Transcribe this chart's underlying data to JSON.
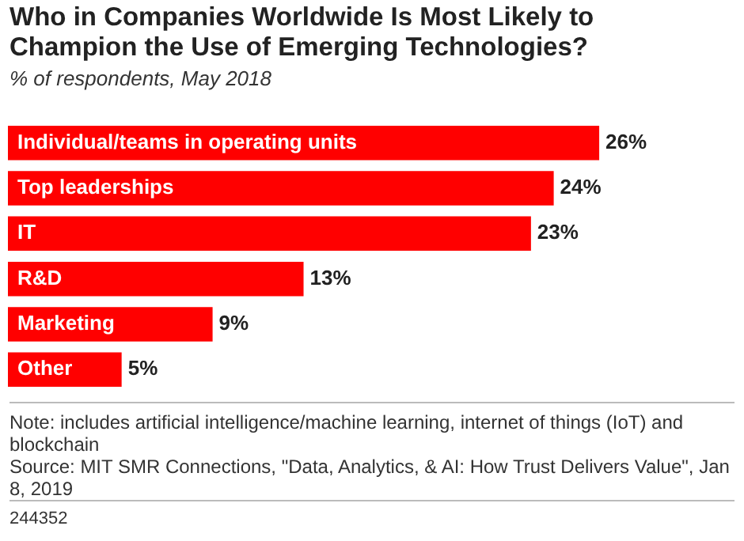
{
  "chart_data": {
    "type": "bar",
    "orientation": "horizontal",
    "title": "Who in Companies Worldwide Is Most Likely to Champion the Use of Emerging Technologies?",
    "subtitle": "% of respondents, May 2018",
    "categories": [
      "Individual/teams in operating units",
      "Top leaderships",
      "IT",
      "R&D",
      "Marketing",
      "Other"
    ],
    "values": [
      26,
      24,
      23,
      13,
      9,
      5
    ],
    "value_labels": [
      "26%",
      "24%",
      "23%",
      "13%",
      "9%",
      "5%"
    ],
    "color": "#ff0000",
    "legend": false,
    "tick_labels": false,
    "annotations": [
      "Note: includes artificial intelligence/machine learning, internet of things (IoT) and blockchain",
      "Source: MIT SMR Connections, \"Data, Analytics, & AI: How Trust Delivers Value\", Jan 8, 2019",
      "244352"
    ]
  }
}
